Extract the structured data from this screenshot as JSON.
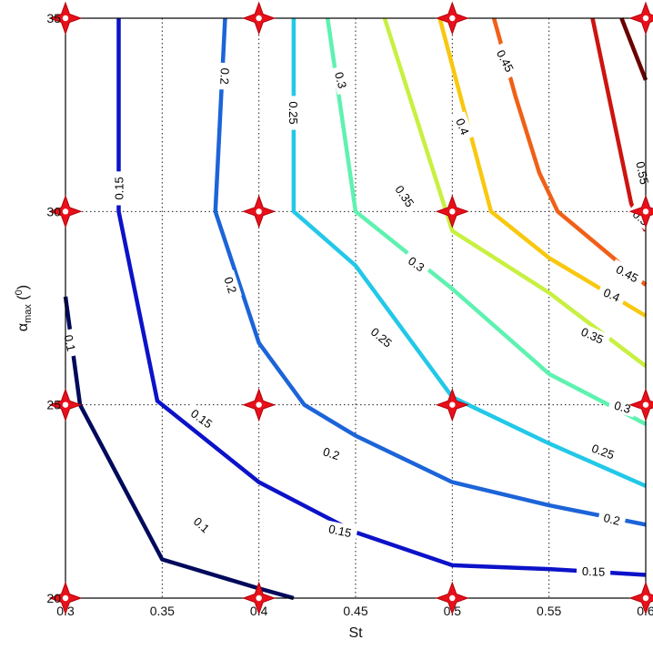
{
  "chart_data": {
    "type": "contour",
    "title": "",
    "xlabel": "St",
    "ylabel": {
      "main": "α",
      "sub": "max",
      "rest": " (",
      "sup": "0",
      "end": ")"
    },
    "xlim": [
      0.3,
      0.6
    ],
    "ylim": [
      20,
      35
    ],
    "xticks": [
      0.3,
      0.35,
      0.4,
      0.45,
      0.5,
      0.55,
      0.6
    ],
    "xtick_labels": [
      "0.3",
      "0.35",
      "0.4",
      "0.45",
      "0.5",
      "0.55",
      "0.6"
    ],
    "yticks": [
      20,
      25,
      30,
      35
    ],
    "ytick_labels": [
      "20",
      "25",
      "30",
      "35"
    ],
    "grid": true,
    "sample_markers": {
      "x": [
        0.3,
        0.4,
        0.5,
        0.6
      ],
      "y": [
        20,
        25,
        30,
        35
      ],
      "color": "#e8101a"
    },
    "levels": [
      {
        "value": 0.1,
        "label": "0.1",
        "color": "#000a5c",
        "points": [
          [
            0.3,
            27.8
          ],
          [
            0.3075,
            25.0
          ],
          [
            0.35,
            21.0
          ],
          [
            0.4,
            20.25
          ],
          [
            0.418,
            20.0
          ]
        ],
        "labels": [
          {
            "x": 0.3025,
            "y": 26.6,
            "angle": 78
          },
          {
            "x": 0.3705,
            "y": 21.9,
            "angle": 42
          }
        ]
      },
      {
        "value": 0.15,
        "label": "0.15",
        "color": "#0c12c8",
        "points": [
          [
            0.3275,
            35
          ],
          [
            0.3275,
            30
          ],
          [
            0.3475,
            25.1
          ],
          [
            0.4,
            23.0
          ],
          [
            0.45,
            21.7
          ],
          [
            0.5,
            20.85
          ],
          [
            0.55,
            20.75
          ],
          [
            0.6,
            20.6
          ]
        ],
        "labels": [
          {
            "x": 0.3275,
            "y": 30.6,
            "angle": -90
          },
          {
            "x": 0.3705,
            "y": 24.65,
            "angle": 36
          },
          {
            "x": 0.442,
            "y": 21.75,
            "angle": 12
          },
          {
            "x": 0.573,
            "y": 20.7,
            "angle": 2
          }
        ]
      },
      {
        "value": 0.2,
        "label": "0.2",
        "color": "#1c64d8",
        "points": [
          [
            0.3825,
            35
          ],
          [
            0.3775,
            30
          ],
          [
            0.4,
            26.6
          ],
          [
            0.4235,
            25.0
          ],
          [
            0.45,
            24.2
          ],
          [
            0.5,
            23.0
          ],
          [
            0.55,
            22.4
          ],
          [
            0.6,
            21.9
          ]
        ],
        "labels": [
          {
            "x": 0.3825,
            "y": 33.5,
            "angle": 92
          },
          {
            "x": 0.3855,
            "y": 28.1,
            "angle": 72
          },
          {
            "x": 0.4375,
            "y": 23.75,
            "angle": 18
          },
          {
            "x": 0.5825,
            "y": 22.05,
            "angle": 14
          }
        ]
      },
      {
        "value": 0.25,
        "label": "0.25",
        "color": "#22c8e8",
        "points": [
          [
            0.418,
            35
          ],
          [
            0.418,
            30
          ],
          [
            0.45,
            28.6
          ],
          [
            0.5,
            25.2
          ],
          [
            0.55,
            24.0
          ],
          [
            0.6,
            22.9
          ]
        ],
        "labels": [
          {
            "x": 0.418,
            "y": 32.55,
            "angle": 90
          },
          {
            "x": 0.4635,
            "y": 26.75,
            "angle": 40
          },
          {
            "x": 0.578,
            "y": 23.8,
            "angle": 20
          }
        ]
      },
      {
        "value": 0.3,
        "label": "0.3",
        "color": "#5ef2b0",
        "points": [
          [
            0.4355,
            35
          ],
          [
            0.45,
            30
          ],
          [
            0.5,
            28.0
          ],
          [
            0.55,
            25.8
          ],
          [
            0.6,
            24.5
          ]
        ],
        "labels": [
          {
            "x": 0.4425,
            "y": 33.4,
            "angle": 75
          },
          {
            "x": 0.4815,
            "y": 28.65,
            "angle": 35
          },
          {
            "x": 0.588,
            "y": 24.95,
            "angle": 16
          }
        ]
      },
      {
        "value": 0.35,
        "label": "0.35",
        "color": "#c8f040",
        "points": [
          [
            0.465,
            35
          ],
          [
            0.5,
            29.5
          ],
          [
            0.55,
            27.9
          ],
          [
            0.6,
            26.0
          ]
        ],
        "labels": [
          {
            "x": 0.4755,
            "y": 30.4,
            "angle": 55
          },
          {
            "x": 0.5725,
            "y": 26.8,
            "angle": 24
          }
        ]
      },
      {
        "value": 0.4,
        "label": "0.4",
        "color": "#f8c810",
        "points": [
          [
            0.4935,
            35
          ],
          [
            0.52,
            30
          ],
          [
            0.55,
            28.8
          ],
          [
            0.6,
            27.3
          ]
        ],
        "labels": [
          {
            "x": 0.5055,
            "y": 32.2,
            "angle": 68
          },
          {
            "x": 0.5825,
            "y": 27.85,
            "angle": 24
          }
        ]
      },
      {
        "value": 0.45,
        "label": "0.45",
        "color": "#f06018",
        "points": [
          [
            0.5215,
            35
          ],
          [
            0.5325,
            33.0
          ],
          [
            0.545,
            31.0
          ],
          [
            0.5545,
            30.0
          ],
          [
            0.6,
            28.1
          ]
        ],
        "labels": [
          {
            "x": 0.5275,
            "y": 33.9,
            "angle": 62
          },
          {
            "x": 0.5905,
            "y": 28.4,
            "angle": 28
          }
        ]
      },
      {
        "value": 0.5,
        "label": "0.5",
        "color": "#cc1410",
        "points": [
          [
            0.5725,
            35
          ],
          [
            0.5925,
            30.2
          ],
          [
            0.6,
            29.5
          ]
        ],
        "labels": [
          {
            "x": 0.5975,
            "y": 29.85,
            "angle": 40
          }
        ]
      },
      {
        "value": 0.55,
        "label": "0.55",
        "color": "#6a0000",
        "points": [
          [
            0.5875,
            35
          ],
          [
            0.6,
            33.4
          ]
        ],
        "labels": [
          {
            "x": 0.5985,
            "y": 31.0,
            "angle": 78
          }
        ]
      }
    ]
  }
}
